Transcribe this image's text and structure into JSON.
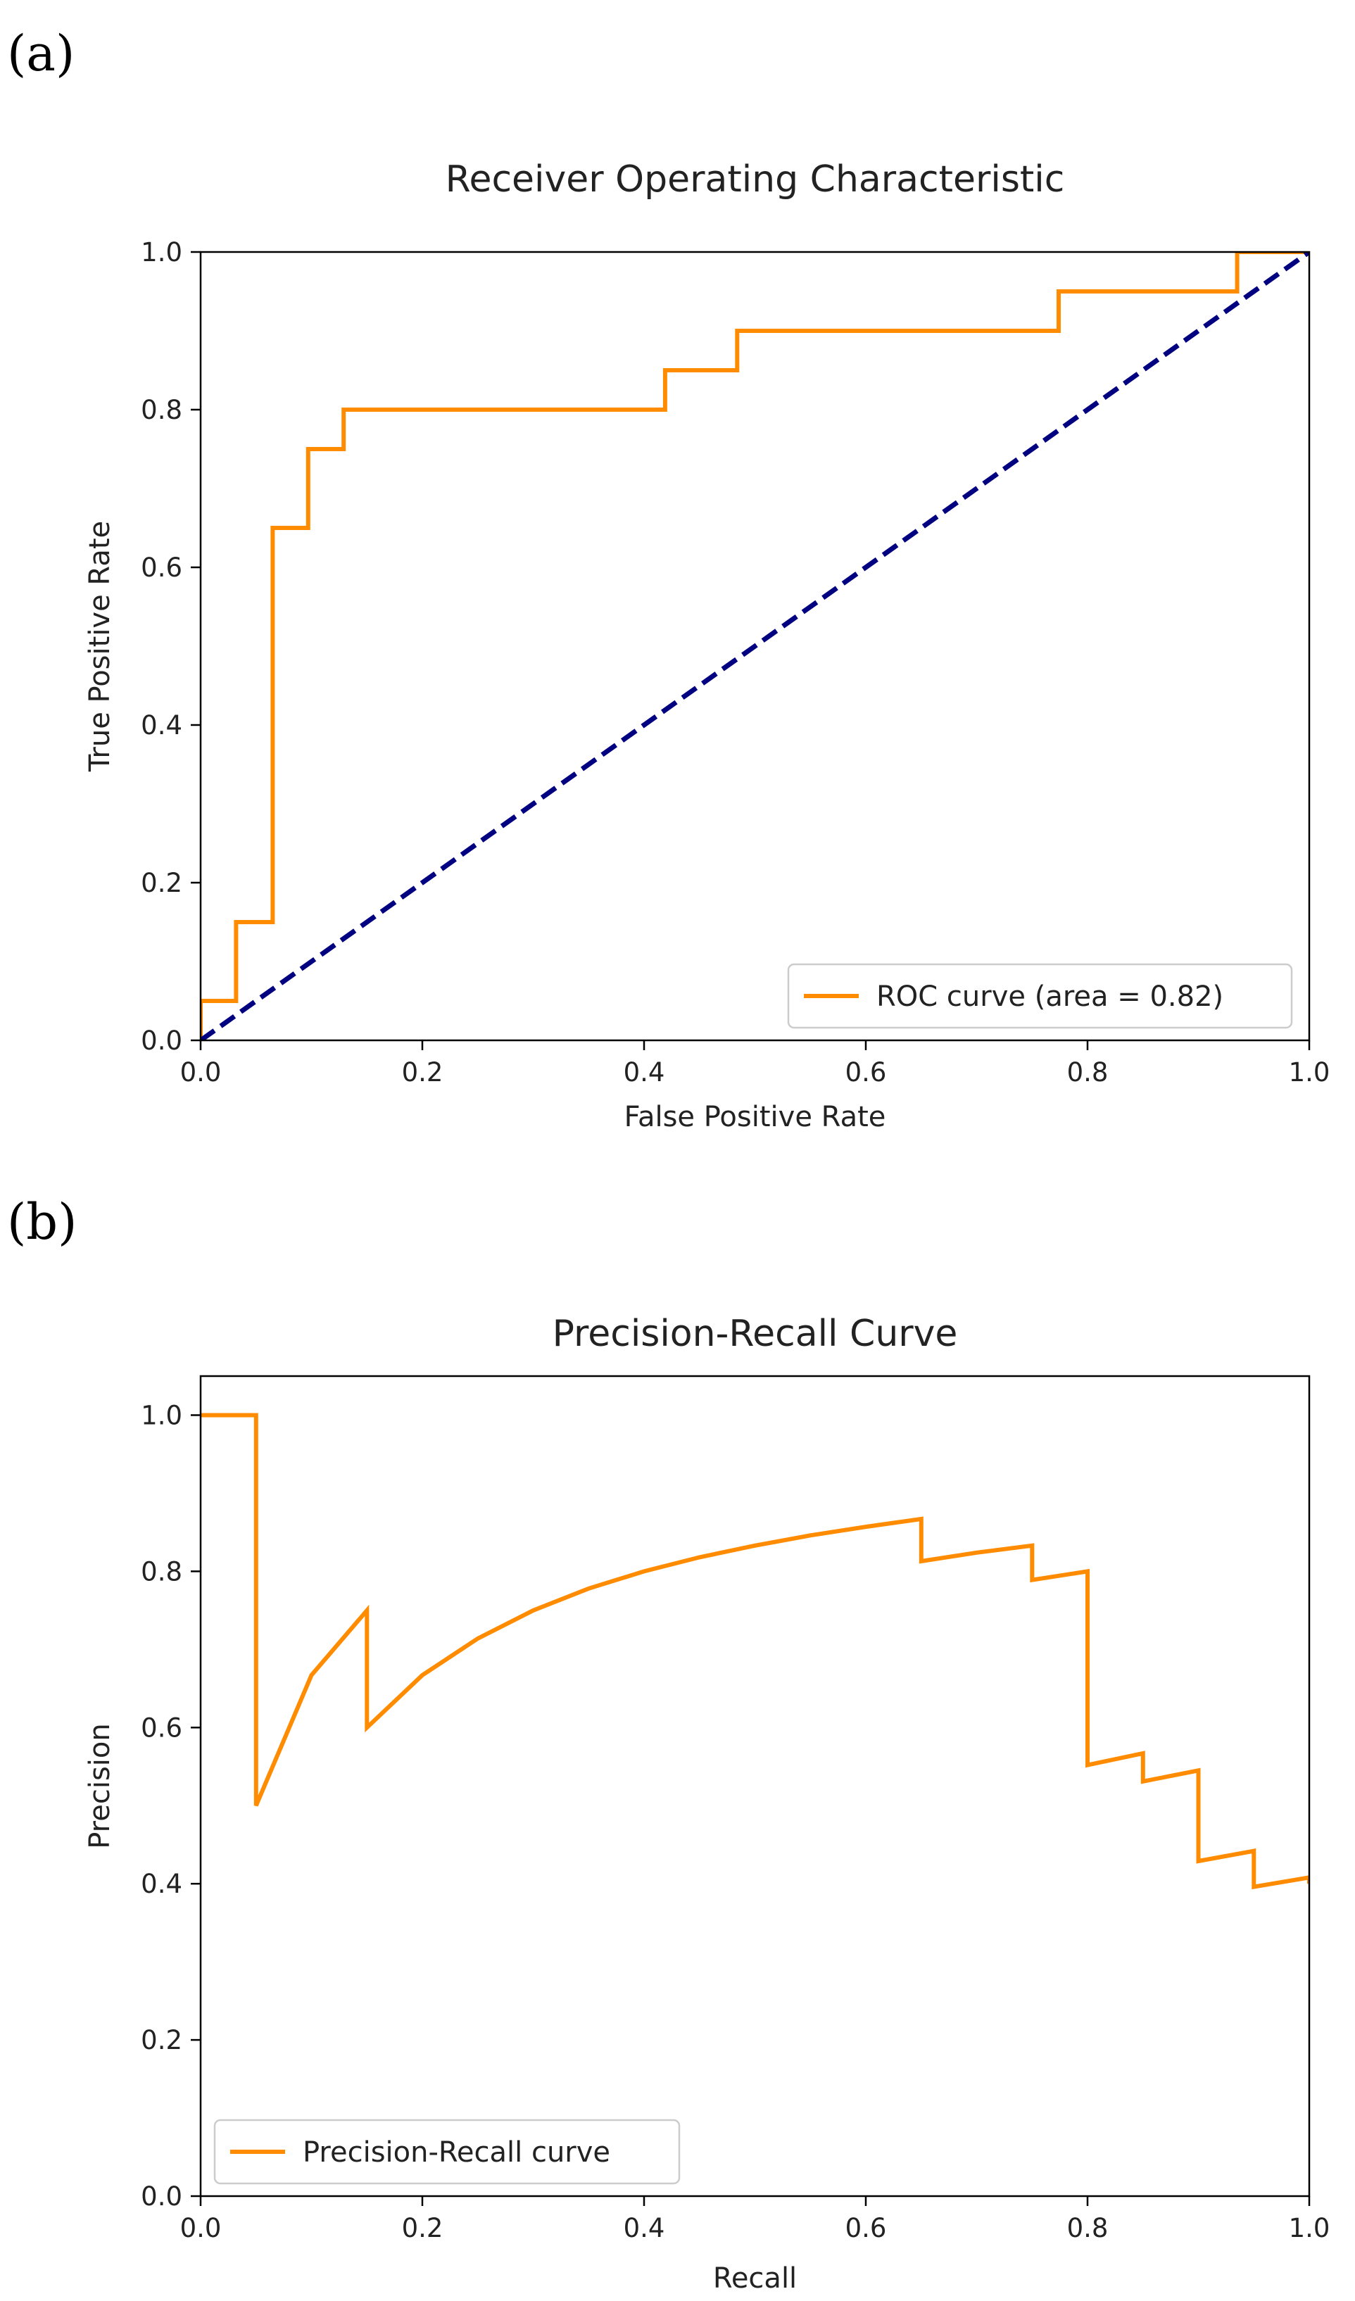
{
  "chart_data": [
    {
      "panel_label": "(a)",
      "type": "line",
      "title": "Receiver Operating Characteristic",
      "xlabel": "False Positive Rate",
      "ylabel": "True Positive Rate",
      "xlim": [
        0,
        1
      ],
      "ylim": [
        0,
        1
      ],
      "xticks": [
        "0.0",
        "0.2",
        "0.4",
        "0.6",
        "0.8",
        "1.0"
      ],
      "yticks": [
        "0.0",
        "0.2",
        "0.4",
        "0.6",
        "0.8",
        "1.0"
      ],
      "grid": false,
      "legend_position": "lower-right",
      "series": [
        {
          "name": "ROC curve (area = 0.82)",
          "color": "#ff8c00",
          "style": "solid",
          "x": [
            0.0,
            0.0,
            0.032,
            0.032,
            0.065,
            0.065,
            0.097,
            0.097,
            0.129,
            0.129,
            0.419,
            0.419,
            0.484,
            0.484,
            0.774,
            0.774,
            0.935,
            0.935,
            1.0
          ],
          "y": [
            0.0,
            0.05,
            0.05,
            0.15,
            0.15,
            0.65,
            0.65,
            0.75,
            0.75,
            0.8,
            0.8,
            0.85,
            0.85,
            0.9,
            0.9,
            0.95,
            0.95,
            1.0,
            1.0
          ]
        },
        {
          "name": "chance",
          "color": "#000080",
          "style": "dashed",
          "show_in_legend": false,
          "x": [
            0,
            1
          ],
          "y": [
            0,
            1
          ]
        }
      ]
    },
    {
      "panel_label": "(b)",
      "type": "line",
      "title": "Precision-Recall Curve",
      "xlabel": "Recall",
      "ylabel": "Precision",
      "xlim": [
        0,
        1
      ],
      "ylim": [
        0,
        1.05
      ],
      "xticks": [
        "0.0",
        "0.2",
        "0.4",
        "0.6",
        "0.8",
        "1.0"
      ],
      "yticks": [
        "0.0",
        "0.2",
        "0.4",
        "0.6",
        "0.8",
        "1.0"
      ],
      "grid": false,
      "legend_position": "lower-left",
      "series": [
        {
          "name": "Precision-Recall curve",
          "color": "#ff8c00",
          "style": "solid",
          "x": [
            0.0,
            0.05,
            0.05,
            0.1,
            0.15,
            0.15,
            0.2,
            0.25,
            0.3,
            0.35,
            0.4,
            0.45,
            0.5,
            0.55,
            0.6,
            0.65,
            0.65,
            0.7,
            0.75,
            0.75,
            0.8,
            0.8,
            0.85,
            0.85,
            0.9,
            0.9,
            0.95,
            0.95,
            1.0,
            1.0
          ],
          "y": [
            1.0,
            1.0,
            0.5,
            0.667,
            0.75,
            0.6,
            0.667,
            0.714,
            0.75,
            0.778,
            0.8,
            0.818,
            0.833,
            0.846,
            0.857,
            0.867,
            0.813,
            0.824,
            0.833,
            0.789,
            0.8,
            0.552,
            0.567,
            0.531,
            0.545,
            0.429,
            0.442,
            0.396,
            0.408,
            0.4
          ]
        }
      ]
    }
  ]
}
